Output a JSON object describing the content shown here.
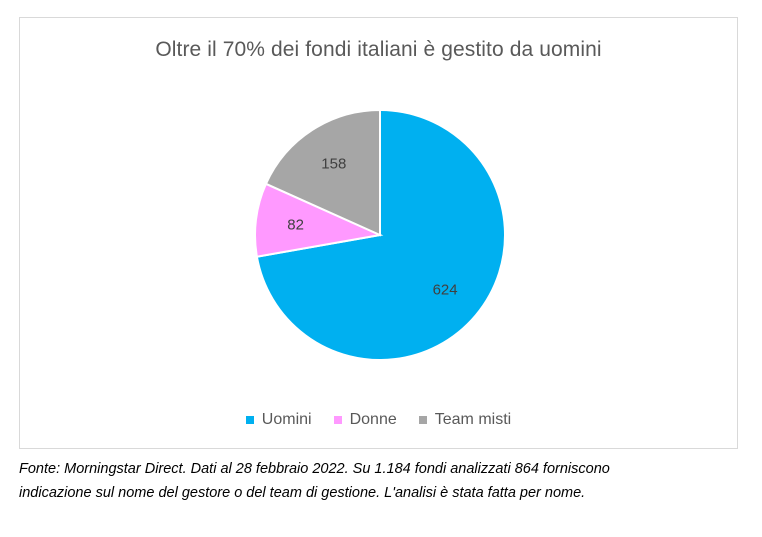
{
  "chart_data": {
    "type": "pie",
    "title": "Oltre il 70% dei fondi italiani è gestito da uomini",
    "categories": [
      "Uomini",
      "Donne",
      "Team misti"
    ],
    "values": [
      624,
      82,
      158
    ],
    "colors": [
      "#00b0f0",
      "#ff99ff",
      "#a6a6a6"
    ],
    "data_labels": [
      "624",
      "82",
      "158"
    ],
    "start_angle": "12 o'clock",
    "direction": "clockwise",
    "legend_position": "bottom"
  },
  "source_note": "Fonte: Morningstar Direct. Dati al 28 febbraio 2022. Su 1.184 fondi analizzati 864 forniscono indicazione sul nome del gestore o del team di gestione. L'analisi è stata fatta per nome."
}
